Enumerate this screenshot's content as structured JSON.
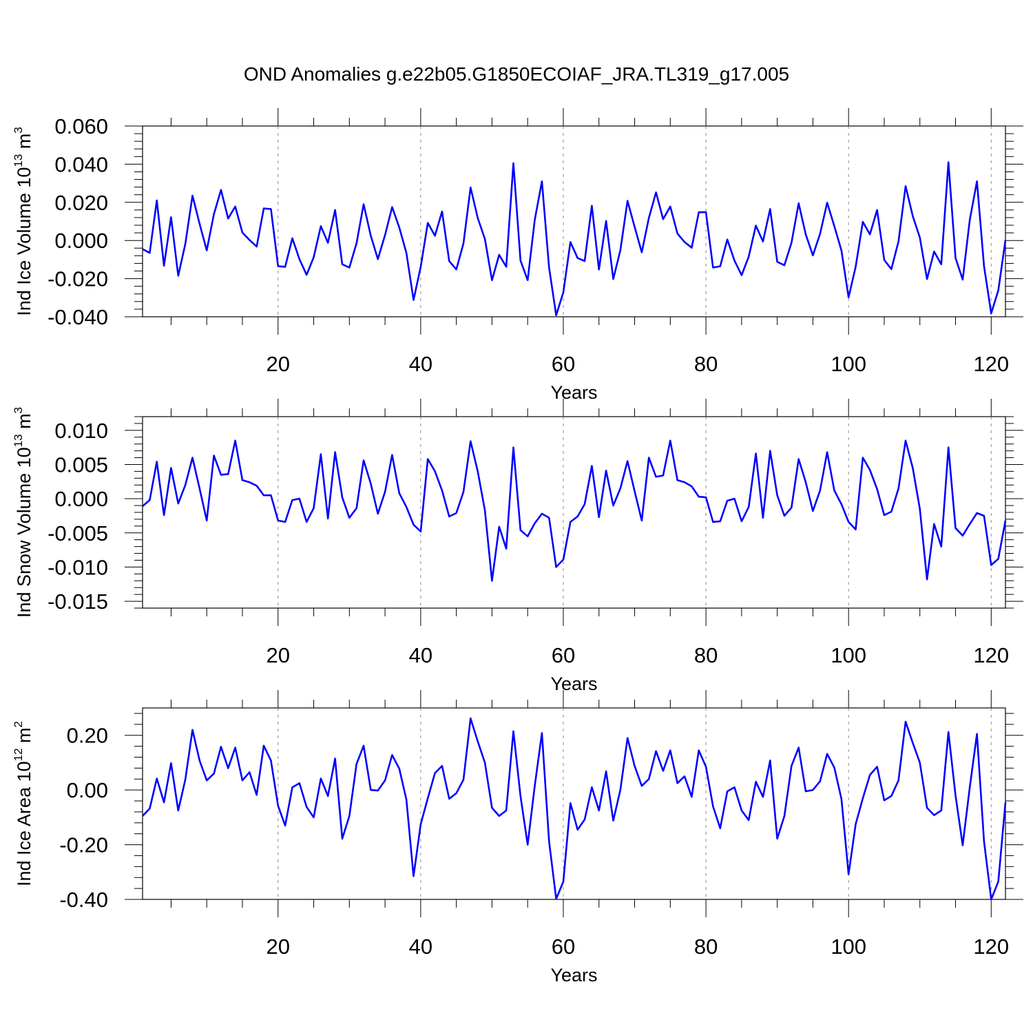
{
  "title": "OND Anomalies g.e22b05.G1850ECOIAF_JRA.TL319_g17.005",
  "line_color": "#0000ff",
  "chart_data": [
    {
      "type": "line",
      "xlabel": "Years",
      "ylabel_parts": [
        "Ind Ice Volume 10",
        "13",
        " m",
        "3"
      ],
      "xlim": [
        1,
        122
      ],
      "ylim": [
        -0.04,
        0.06
      ],
      "yticks": [
        -0.04,
        -0.02,
        0.0,
        0.02,
        0.04,
        0.06
      ],
      "ytick_labels": [
        "-0.040",
        "-0.020",
        "0.000",
        "0.020",
        "0.040",
        "0.060"
      ],
      "xticks": [
        20,
        40,
        60,
        80,
        100,
        120
      ],
      "xtick_labels": [
        "20",
        "40",
        "60",
        "80",
        "100",
        "120"
      ],
      "grid": "dashed vertical at major x ticks",
      "x": [
        1,
        2,
        3,
        4,
        5,
        6,
        7,
        8,
        9,
        10,
        11,
        12,
        13,
        14,
        15,
        16,
        17,
        18,
        19,
        20,
        21,
        22,
        23,
        24,
        25,
        26,
        27,
        28,
        29,
        30,
        31,
        32,
        33,
        34,
        35,
        36,
        37,
        38,
        39,
        40,
        41,
        42,
        43,
        44,
        45,
        46,
        47,
        48,
        49,
        50,
        51,
        52,
        53,
        54,
        55,
        56,
        57,
        58,
        59,
        60,
        61,
        62,
        63,
        64,
        65,
        66,
        67,
        68,
        69,
        70,
        71,
        72,
        73,
        74,
        75,
        76,
        77,
        78,
        79,
        80,
        81,
        82,
        83,
        84,
        85,
        86,
        87,
        88,
        89,
        90,
        91,
        92,
        93,
        94,
        95,
        96,
        97,
        98,
        99,
        100,
        101,
        102,
        103,
        104,
        105,
        106,
        107,
        108,
        109,
        110,
        111,
        112,
        113,
        114,
        115,
        116,
        117,
        118,
        119,
        120,
        121,
        122
      ],
      "y": [
        -0.0045,
        -0.0065,
        0.021,
        -0.0132,
        0.0122,
        -0.0185,
        -0.0018,
        0.0235,
        0.0088,
        -0.0052,
        0.0138,
        0.0265,
        0.0115,
        0.0178,
        0.0041,
        0.0003,
        -0.0032,
        0.0168,
        0.0165,
        -0.0135,
        -0.0138,
        0.0012,
        -0.0098,
        -0.018,
        -0.0088,
        0.0075,
        -0.0012,
        0.016,
        -0.0125,
        -0.0142,
        -0.0015,
        0.019,
        0.0025,
        -0.0098,
        0.0028,
        0.0175,
        0.0068,
        -0.0065,
        -0.0312,
        -0.0138,
        0.0092,
        0.0025,
        0.0152,
        -0.0108,
        -0.0152,
        -0.0015,
        0.0278,
        0.0118,
        0.0008,
        -0.0208,
        -0.0075,
        -0.0138,
        0.0405,
        -0.0105,
        -0.0208,
        0.0108,
        0.031,
        -0.0142,
        -0.0392,
        -0.0272,
        -0.0008,
        -0.0092,
        -0.0108,
        0.0182,
        -0.0152,
        0.0102,
        -0.0202,
        -0.0052,
        0.0208,
        0.0072,
        -0.0062,
        0.0118,
        0.0252,
        0.0112,
        0.0178,
        0.0036,
        -0.0008,
        -0.0038,
        0.0148,
        0.0148,
        -0.0142,
        -0.0135,
        0.0005,
        -0.0105,
        -0.0182,
        -0.0085,
        0.0078,
        -0.0005,
        0.0165,
        -0.0112,
        -0.013,
        -0.0012,
        0.0195,
        0.0032,
        -0.0078,
        0.0035,
        0.0198,
        0.0075,
        -0.0052,
        -0.0298,
        -0.0138,
        0.0098,
        0.0032,
        0.016,
        -0.0102,
        -0.015,
        -0.0005,
        0.0285,
        0.0128,
        0.0015,
        -0.0202,
        -0.0058,
        -0.0125,
        0.041,
        -0.0092,
        -0.0205,
        0.0108,
        0.031,
        -0.0135,
        -0.0382,
        -0.0262,
        0.0002
      ]
    },
    {
      "type": "line",
      "xlabel": "Years",
      "ylabel_parts": [
        "Ind Snow Volume 10",
        "13",
        " m",
        "3"
      ],
      "xlim": [
        1,
        122
      ],
      "ylim": [
        -0.016,
        0.012
      ],
      "yticks": [
        -0.015,
        -0.01,
        -0.005,
        0.0,
        0.005,
        0.01
      ],
      "ytick_labels": [
        "-0.015",
        "-0.010",
        "-0.005",
        "0.000",
        "0.005",
        "0.010"
      ],
      "xticks": [
        20,
        40,
        60,
        80,
        100,
        120
      ],
      "xtick_labels": [
        "20",
        "40",
        "60",
        "80",
        "100",
        "120"
      ],
      "grid": "dashed vertical at major x ticks",
      "x": [
        1,
        2,
        3,
        4,
        5,
        6,
        7,
        8,
        9,
        10,
        11,
        12,
        13,
        14,
        15,
        16,
        17,
        18,
        19,
        20,
        21,
        22,
        23,
        24,
        25,
        26,
        27,
        28,
        29,
        30,
        31,
        32,
        33,
        34,
        35,
        36,
        37,
        38,
        39,
        40,
        41,
        42,
        43,
        44,
        45,
        46,
        47,
        48,
        49,
        50,
        51,
        52,
        53,
        54,
        55,
        56,
        57,
        58,
        59,
        60,
        61,
        62,
        63,
        64,
        65,
        66,
        67,
        68,
        69,
        70,
        71,
        72,
        73,
        74,
        75,
        76,
        77,
        78,
        79,
        80,
        81,
        82,
        83,
        84,
        85,
        86,
        87,
        88,
        89,
        90,
        91,
        92,
        93,
        94,
        95,
        96,
        97,
        98,
        99,
        100,
        101,
        102,
        103,
        104,
        105,
        106,
        107,
        108,
        109,
        110,
        111,
        112,
        113,
        114,
        115,
        116,
        117,
        118,
        119,
        120,
        121,
        122
      ],
      "y": [
        -0.0011,
        -0.0002,
        0.0054,
        -0.0024,
        0.0045,
        -0.0007,
        0.002,
        0.006,
        0.0015,
        -0.0032,
        0.0063,
        0.0035,
        0.0036,
        0.0085,
        0.0027,
        0.0024,
        0.0019,
        0.0005,
        0.0005,
        -0.0032,
        -0.0034,
        -0.0002,
        0.0,
        -0.0034,
        -0.0014,
        0.0065,
        -0.0029,
        0.0068,
        0.0002,
        -0.0028,
        -0.0014,
        0.0056,
        0.0022,
        -0.0022,
        0.001,
        0.0064,
        0.0008,
        -0.0012,
        -0.0038,
        -0.0048,
        0.0058,
        0.004,
        0.0012,
        -0.0026,
        -0.0021,
        0.001,
        0.0084,
        0.004,
        -0.0017,
        -0.012,
        -0.0041,
        -0.0073,
        0.0075,
        -0.0046,
        -0.0055,
        -0.0036,
        -0.0022,
        -0.0028,
        -0.01,
        -0.0089,
        -0.0034,
        -0.0026,
        -0.0008,
        0.0048,
        -0.0027,
        0.0041,
        -0.001,
        0.0015,
        0.0055,
        0.0011,
        -0.0032,
        0.006,
        0.0032,
        0.0034,
        0.0085,
        0.0027,
        0.0024,
        0.0018,
        0.0003,
        0.0002,
        -0.0034,
        -0.0033,
        -0.0003,
        0.0,
        -0.0033,
        -0.0012,
        0.0066,
        -0.0028,
        0.007,
        0.0005,
        -0.0025,
        -0.0013,
        0.0058,
        0.0024,
        -0.0018,
        0.0012,
        0.0068,
        0.0012,
        -0.0008,
        -0.0034,
        -0.0045,
        0.006,
        0.0042,
        0.0014,
        -0.0024,
        -0.0019,
        0.0015,
        0.0085,
        0.0045,
        -0.0015,
        -0.0118,
        -0.0037,
        -0.007,
        0.0075,
        -0.0043,
        -0.0054,
        -0.0037,
        -0.0021,
        -0.0025,
        -0.0097,
        -0.0088,
        -0.0032
      ]
    },
    {
      "type": "line",
      "xlabel": "Years",
      "ylabel_parts": [
        "Ind Ice Area 10",
        "12",
        " m",
        "2"
      ],
      "xlim": [
        1,
        122
      ],
      "ylim": [
        -0.4,
        0.3
      ],
      "yticks": [
        -0.4,
        -0.2,
        0.0,
        0.2
      ],
      "ytick_labels": [
        "-0.40",
        "-0.20",
        "0.00",
        "0.20"
      ],
      "xticks": [
        20,
        40,
        60,
        80,
        100,
        120
      ],
      "xtick_labels": [
        "20",
        "40",
        "60",
        "80",
        "100",
        "120"
      ],
      "grid": "dashed vertical at major x ticks",
      "x": [
        1,
        2,
        3,
        4,
        5,
        6,
        7,
        8,
        9,
        10,
        11,
        12,
        13,
        14,
        15,
        16,
        17,
        18,
        19,
        20,
        21,
        22,
        23,
        24,
        25,
        26,
        27,
        28,
        29,
        30,
        31,
        32,
        33,
        34,
        35,
        36,
        37,
        38,
        39,
        40,
        41,
        42,
        43,
        44,
        45,
        46,
        47,
        48,
        49,
        50,
        51,
        52,
        53,
        54,
        55,
        56,
        57,
        58,
        59,
        60,
        61,
        62,
        63,
        64,
        65,
        66,
        67,
        68,
        69,
        70,
        71,
        72,
        73,
        74,
        75,
        76,
        77,
        78,
        79,
        80,
        81,
        82,
        83,
        84,
        85,
        86,
        87,
        88,
        89,
        90,
        91,
        92,
        93,
        94,
        95,
        96,
        97,
        98,
        99,
        100,
        101,
        102,
        103,
        104,
        105,
        106,
        107,
        108,
        109,
        110,
        111,
        112,
        113,
        114,
        115,
        116,
        117,
        118,
        119,
        120,
        121,
        122
      ],
      "y": [
        -0.095,
        -0.068,
        0.042,
        -0.045,
        0.098,
        -0.075,
        0.038,
        0.22,
        0.108,
        0.035,
        0.06,
        0.158,
        0.08,
        0.155,
        0.035,
        0.065,
        -0.018,
        0.162,
        0.108,
        -0.058,
        -0.13,
        0.01,
        0.025,
        -0.062,
        -0.1,
        0.042,
        -0.022,
        0.115,
        -0.178,
        -0.095,
        0.095,
        0.162,
        0.0,
        -0.002,
        0.035,
        0.128,
        0.078,
        -0.035,
        -0.315,
        -0.125,
        -0.03,
        0.062,
        0.088,
        -0.032,
        -0.012,
        0.038,
        0.262,
        0.178,
        0.1,
        -0.065,
        -0.095,
        -0.075,
        0.215,
        -0.022,
        -0.2,
        0.015,
        0.208,
        -0.188,
        -0.398,
        -0.335,
        -0.048,
        -0.145,
        -0.108,
        0.01,
        -0.075,
        0.068,
        -0.112,
        0.0,
        0.19,
        0.088,
        0.015,
        0.04,
        0.142,
        0.07,
        0.145,
        0.025,
        0.05,
        -0.025,
        0.145,
        0.085,
        -0.06,
        -0.14,
        -0.005,
        0.01,
        -0.075,
        -0.11,
        0.03,
        -0.025,
        0.108,
        -0.178,
        -0.095,
        0.088,
        0.155,
        -0.005,
        0.0,
        0.032,
        0.132,
        0.082,
        -0.032,
        -0.308,
        -0.125,
        -0.03,
        0.055,
        0.085,
        -0.038,
        -0.022,
        0.035,
        0.25,
        0.172,
        0.1,
        -0.065,
        -0.092,
        -0.075,
        0.212,
        -0.02,
        -0.202,
        0.01,
        0.205,
        -0.188,
        -0.4,
        -0.335,
        -0.045
      ]
    }
  ]
}
